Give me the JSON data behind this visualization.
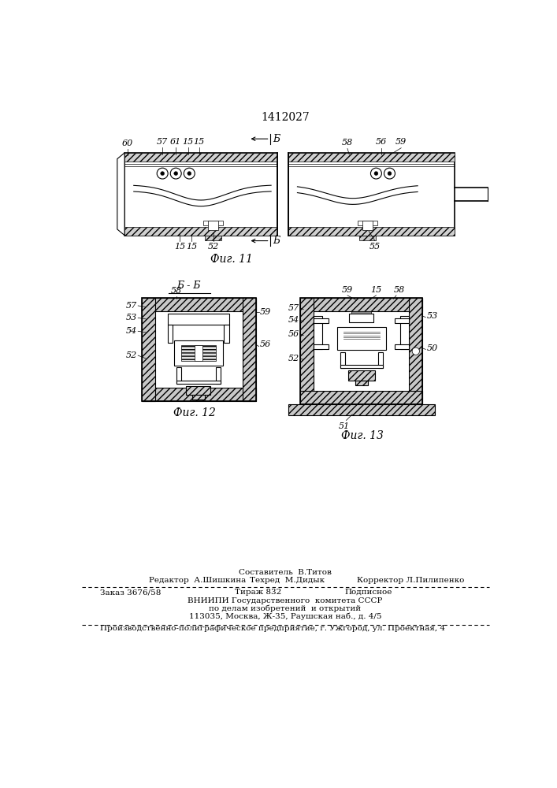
{
  "patent_number": "1412027",
  "background_color": "#ffffff",
  "line_color": "#000000",
  "fig_width": 7.07,
  "fig_height": 10.0,
  "fig11_caption": "Фиг. 11",
  "fig12_caption": "Фиг. 12",
  "fig13_caption": "Фиг. 13",
  "section_label": "Б - Б",
  "arrow_label": "Б",
  "footer_sestavitel": "Составитель  В.Титов",
  "footer_redaktor": "Редактор  А.Шишкина",
  "footer_tehred": "Техред  М.Дидык",
  "footer_korrektor": "Корректор Л.Пилипенко",
  "footer_zakaz": "Заказ 3676/58",
  "footer_tirazh": "Тираж 832",
  "footer_podpisnoe": "Подписное",
  "footer_vniipи": "ВНИИПИ Государственного  комитета СССР",
  "footer_po_delam": "по делам изобретений  и открытий",
  "footer_address": "113035, Москва, Ж-35, Раушская наб., д. 4/5",
  "footer_enterprise": "Производственно-полиграфическое предприятие, г. Ужгород, ул. Проектная, 4"
}
